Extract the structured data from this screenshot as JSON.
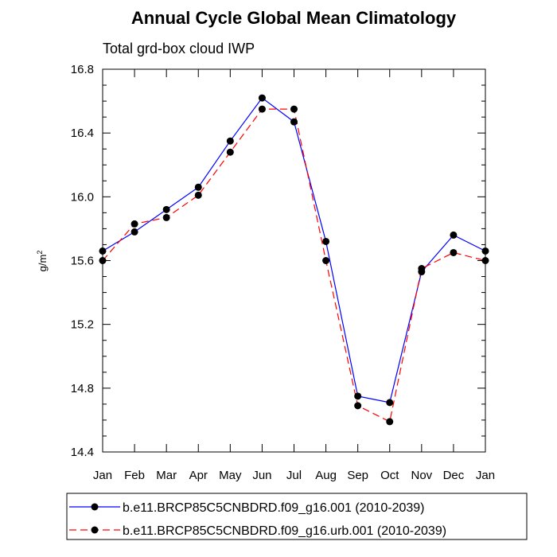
{
  "chart_data": {
    "type": "line",
    "title": "Annual Cycle Global Mean Climatology",
    "subtitle": "Total grd-box cloud IWP",
    "xlabel": "",
    "ylabel": "g/m",
    "ylabel_superscript": "2",
    "categories": [
      "Jan",
      "Feb",
      "Mar",
      "Apr",
      "May",
      "Jun",
      "Jul",
      "Aug",
      "Sep",
      "Oct",
      "Nov",
      "Dec",
      "Jan"
    ],
    "ylim": [
      14.4,
      16.8
    ],
    "yticks": [
      "14.4",
      "14.8",
      "15.2",
      "15.6",
      "16.0",
      "16.4",
      "16.8"
    ],
    "grid": false,
    "legend_position": "bottom",
    "series": [
      {
        "name": "b.e11.BRCP85C5CNBDRD.f09_g16.001 (2010-2039)",
        "color": "#0000ff",
        "style": "solid",
        "marker": "filled-circle",
        "values": [
          15.66,
          15.78,
          15.92,
          16.06,
          16.35,
          16.62,
          16.47,
          15.72,
          14.75,
          14.71,
          15.53,
          15.76,
          15.66
        ]
      },
      {
        "name": "b.e11.BRCP85C5CNBDRD.f09_g16.urb.001 (2010-2039)",
        "color": "#ff0000",
        "style": "dashed",
        "marker": "filled-circle",
        "values": [
          15.6,
          15.83,
          15.87,
          16.01,
          16.28,
          16.55,
          16.55,
          15.6,
          14.69,
          14.59,
          15.55,
          15.65,
          15.6
        ]
      }
    ]
  }
}
